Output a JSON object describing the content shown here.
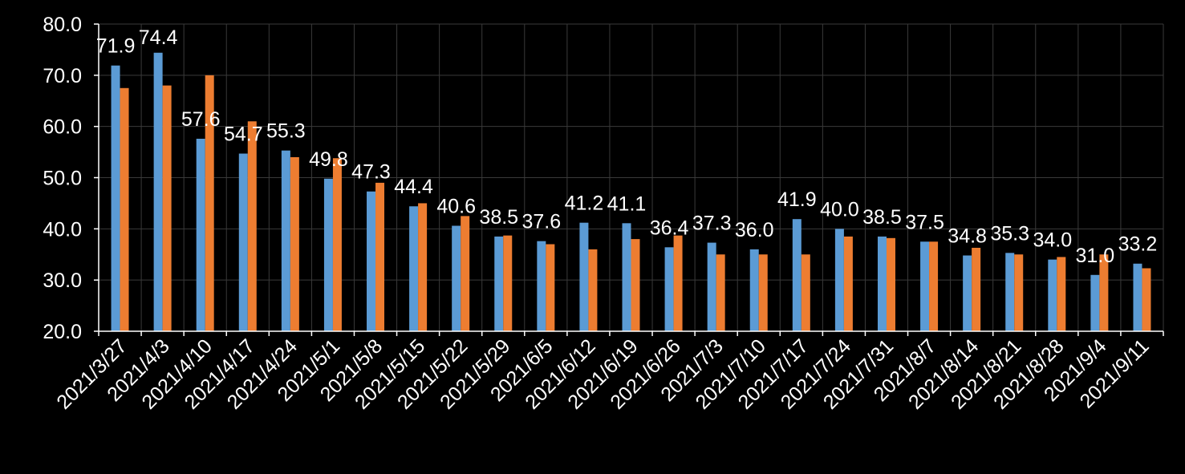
{
  "chart_data": {
    "type": "bar",
    "categories": [
      "2021/3/27",
      "2021/4/3",
      "2021/4/10",
      "2021/4/17",
      "2021/4/24",
      "2021/5/1",
      "2021/5/8",
      "2021/5/15",
      "2021/5/22",
      "2021/5/29",
      "2021/6/5",
      "2021/6/12",
      "2021/6/19",
      "2021/6/26",
      "2021/7/3",
      "2021/7/10",
      "2021/7/17",
      "2021/7/24",
      "2021/7/31",
      "2021/8/7",
      "2021/8/14",
      "2021/8/21",
      "2021/8/28",
      "2021/9/4",
      "2021/9/11"
    ],
    "series": [
      {
        "color": "#5b9bd5",
        "labeled": true,
        "values": [
          71.9,
          74.4,
          57.6,
          54.7,
          55.3,
          49.8,
          47.3,
          44.4,
          40.6,
          38.5,
          37.6,
          41.2,
          41.1,
          36.4,
          37.3,
          36.0,
          41.9,
          40.0,
          38.5,
          37.5,
          34.8,
          35.3,
          34.0,
          31.0,
          33.2
        ]
      },
      {
        "color": "#ed7d31",
        "labeled": false,
        "values": [
          67.5,
          68.0,
          70.0,
          61.0,
          54.0,
          53.8,
          49.0,
          45.0,
          42.5,
          38.7,
          37.0,
          36.0,
          38.0,
          38.7,
          35.0,
          35.0,
          35.0,
          38.5,
          38.2,
          37.5,
          36.3,
          35.0,
          34.5,
          35.0,
          32.3
        ]
      }
    ],
    "ylim": [
      20,
      80
    ],
    "yticks": [
      "20.0",
      "30.0",
      "40.0",
      "50.0",
      "60.0",
      "70.0",
      "80.0"
    ],
    "grid": true,
    "legend": "none",
    "background": "#000000",
    "text_color": "#ffffff"
  }
}
